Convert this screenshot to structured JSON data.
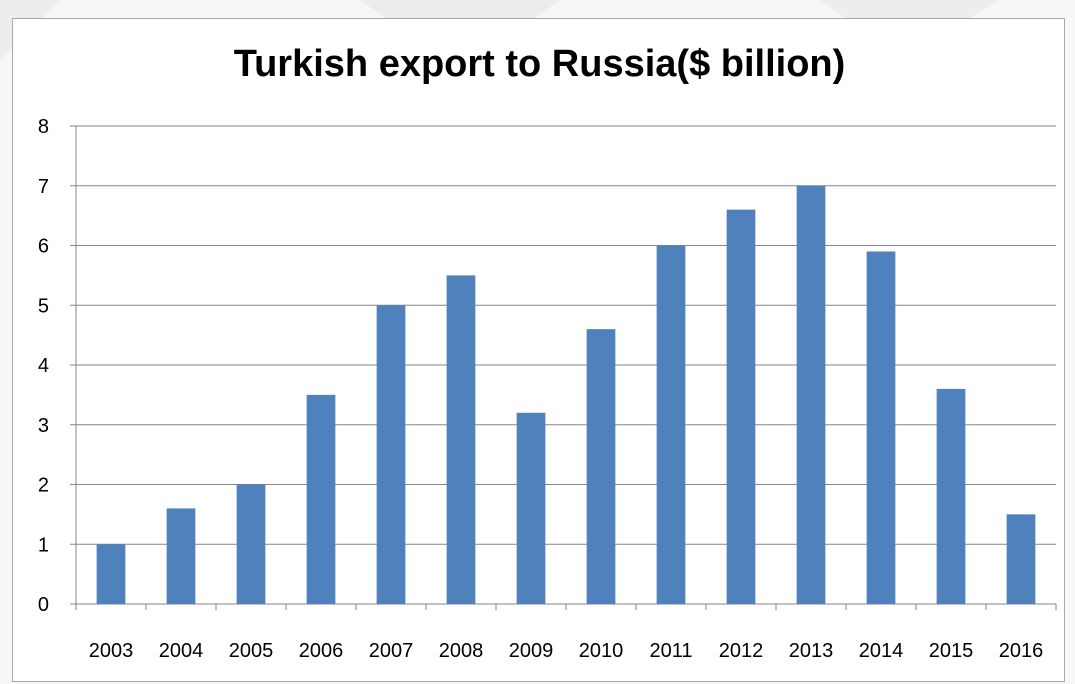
{
  "colors": {
    "bar": "#4f81bd",
    "grid": "#868686",
    "axis": "#868686",
    "background": "#ffffff",
    "watermark": "#efefef"
  },
  "chart_data": {
    "type": "bar",
    "title": "Turkish export to Russia($ billion)",
    "xlabel": "",
    "ylabel": "",
    "categories": [
      "2003",
      "2004",
      "2005",
      "2006",
      "2007",
      "2008",
      "2009",
      "2010",
      "2011",
      "2012",
      "2013",
      "2014",
      "2015",
      "2016"
    ],
    "values": [
      1.0,
      1.6,
      2.0,
      3.5,
      5.0,
      5.5,
      3.2,
      4.6,
      6.0,
      6.6,
      7.0,
      5.9,
      3.6,
      1.5
    ],
    "ylim": [
      0,
      8
    ],
    "yticks": [
      "0",
      "1",
      "2",
      "3",
      "4",
      "5",
      "6",
      "7",
      "8"
    ],
    "grid": true,
    "legend": "none"
  }
}
